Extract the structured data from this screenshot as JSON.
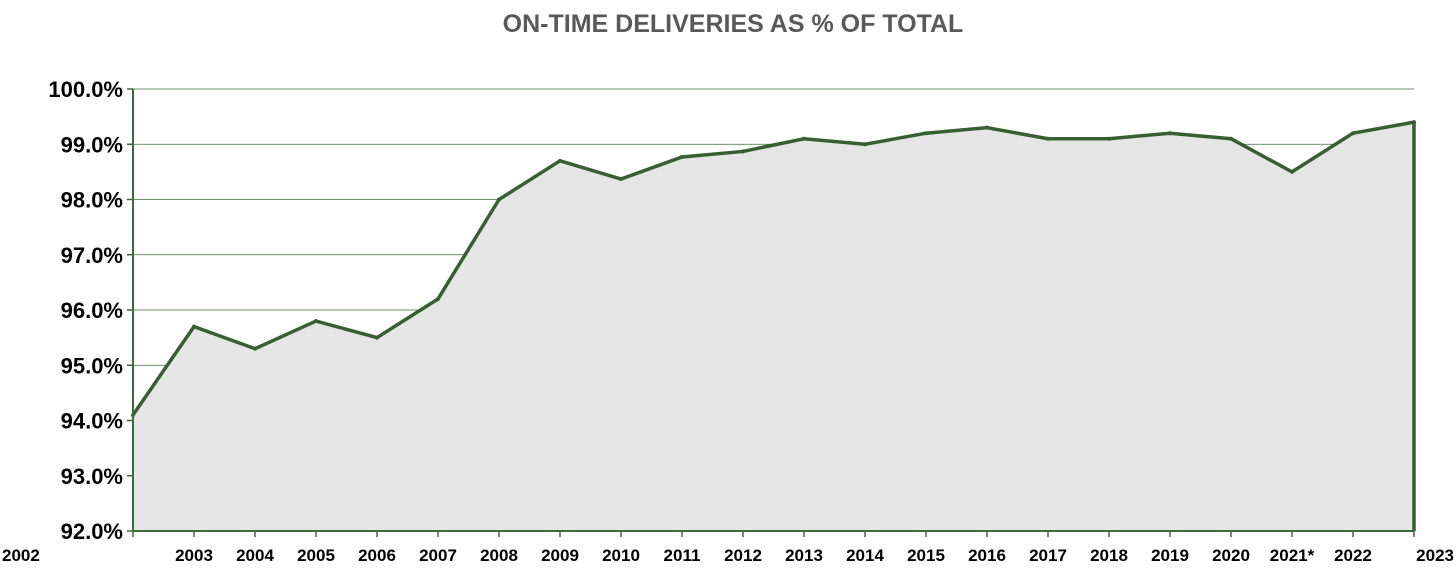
{
  "chart_data": {
    "type": "area",
    "title": "ON-TIME DELIVERIES AS % OF TOTAL",
    "xlabel": "",
    "ylabel": "",
    "categories": [
      "2002",
      "2003",
      "2004",
      "2005",
      "2006",
      "2007",
      "2008",
      "2009",
      "2010",
      "2011",
      "2012",
      "2013",
      "2014",
      "2015",
      "2016",
      "2017",
      "2018",
      "2019",
      "2020",
      "2021*",
      "2022",
      "2023"
    ],
    "series": [
      {
        "values": [
          94.1,
          95.7,
          95.3,
          95.8,
          95.5,
          96.2,
          98.0,
          98.7,
          98.37,
          98.77,
          98.87,
          99.1,
          99.0,
          99.2,
          99.3,
          99.1,
          99.1,
          99.2,
          99.1,
          98.5,
          99.2,
          99.4
        ]
      }
    ],
    "ylim": [
      92.0,
      100.0
    ],
    "yticks": [
      92.0,
      93.0,
      94.0,
      95.0,
      96.0,
      97.0,
      98.0,
      99.0,
      100.0
    ],
    "ytick_labels": [
      "92.0%",
      "93.0%",
      "94.0%",
      "95.0%",
      "96.0%",
      "97.0%",
      "98.0%",
      "99.0%",
      "100.0%"
    ],
    "grid": true,
    "legend": "none",
    "colors": {
      "line": "#375f32",
      "fill": "#e5e5e5",
      "grid": "#3b6a3b",
      "axis": "#3b6a3b",
      "title": "#595959"
    }
  }
}
